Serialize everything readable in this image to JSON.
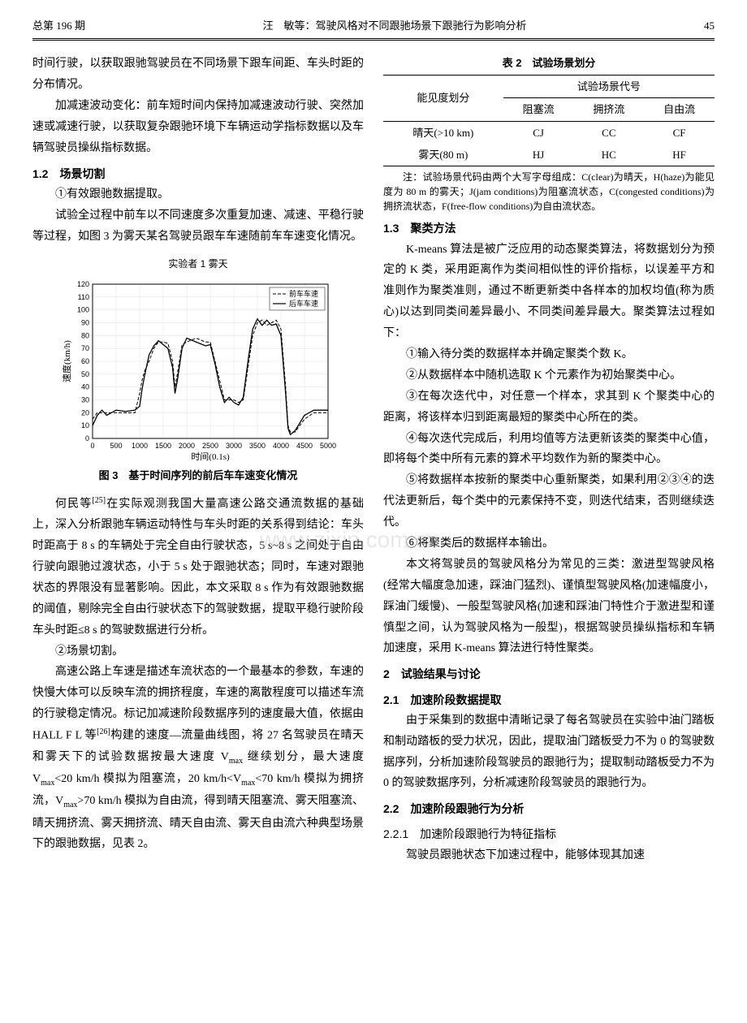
{
  "header": {
    "issue": "总第 196 期",
    "running": "汪　敏等：驾驶风格对不同跟驰场景下跟驰行为影响分析",
    "page": "45"
  },
  "left_col": {
    "p1": "时间行驶，以获取跟驰驾驶员在不同场景下跟车间距、车头时距的分布情况。",
    "p2": "加减速波动变化：前车短时间内保持加减速波动行驶、突然加速或减速行驶，以获取复杂跟驰环境下车辆运动学指标数据以及车辆驾驶员操纵指标数据。",
    "sec12_num": "1.2",
    "sec12_title": "场景切割",
    "p3": "①有效跟驰数据提取。",
    "p4": "试验全过程中前车以不同速度多次重复加速、减速、平稳行驶等过程，如图 3 为雾天某名驾驶员跟车车速随前车车速变化情况。",
    "chart": {
      "title": "实验者 1 雾天",
      "legend_front": "前车车速",
      "legend_rear": "后车车速",
      "ylabel": "速度(km/h)",
      "xlabel": "时间(0.1s)",
      "caption": "图 3　基于时间序列的前后车车速变化情况",
      "xlim": [
        0,
        5000
      ],
      "ylim": [
        0,
        120
      ],
      "xtick_step": 500,
      "ytick_step": 10,
      "grid_color": "#e0e0e0",
      "axis_color": "#000000",
      "front_line_dash": "4,2",
      "front_color": "#000000",
      "rear_color": "#000000",
      "series_front": [
        [
          0,
          15
        ],
        [
          100,
          20
        ],
        [
          200,
          20
        ],
        [
          300,
          20
        ],
        [
          500,
          20
        ],
        [
          700,
          20
        ],
        [
          900,
          20
        ],
        [
          1000,
          35
        ],
        [
          1050,
          45
        ],
        [
          1100,
          52
        ],
        [
          1200,
          60
        ],
        [
          1300,
          70
        ],
        [
          1400,
          75
        ],
        [
          1500,
          75
        ],
        [
          1600,
          74
        ],
        [
          1700,
          60
        ],
        [
          1750,
          40
        ],
        [
          1800,
          50
        ],
        [
          1900,
          73
        ],
        [
          2000,
          75
        ],
        [
          2200,
          78
        ],
        [
          2400,
          75
        ],
        [
          2500,
          75
        ],
        [
          2600,
          60
        ],
        [
          2700,
          45
        ],
        [
          2800,
          30
        ],
        [
          2900,
          30
        ],
        [
          3000,
          30
        ],
        [
          3100,
          28
        ],
        [
          3200,
          30
        ],
        [
          3300,
          55
        ],
        [
          3400,
          80
        ],
        [
          3500,
          90
        ],
        [
          3600,
          92
        ],
        [
          3700,
          88
        ],
        [
          3800,
          90
        ],
        [
          3900,
          92
        ],
        [
          4000,
          85
        ],
        [
          4100,
          40
        ],
        [
          4150,
          10
        ],
        [
          4200,
          5
        ],
        [
          4300,
          5
        ],
        [
          4500,
          15
        ],
        [
          4700,
          20
        ],
        [
          5000,
          20
        ]
      ],
      "series_rear": [
        [
          0,
          10
        ],
        [
          100,
          18
        ],
        [
          200,
          22
        ],
        [
          300,
          18
        ],
        [
          500,
          22
        ],
        [
          700,
          21
        ],
        [
          900,
          22
        ],
        [
          1000,
          25
        ],
        [
          1050,
          38
        ],
        [
          1100,
          48
        ],
        [
          1200,
          65
        ],
        [
          1300,
          72
        ],
        [
          1400,
          76
        ],
        [
          1500,
          73
        ],
        [
          1600,
          70
        ],
        [
          1700,
          55
        ],
        [
          1750,
          35
        ],
        [
          1800,
          45
        ],
        [
          1900,
          70
        ],
        [
          2000,
          78
        ],
        [
          2200,
          75
        ],
        [
          2400,
          72
        ],
        [
          2500,
          73
        ],
        [
          2600,
          58
        ],
        [
          2700,
          40
        ],
        [
          2800,
          28
        ],
        [
          2900,
          32
        ],
        [
          3000,
          28
        ],
        [
          3100,
          26
        ],
        [
          3200,
          32
        ],
        [
          3300,
          60
        ],
        [
          3400,
          85
        ],
        [
          3500,
          93
        ],
        [
          3600,
          88
        ],
        [
          3700,
          92
        ],
        [
          3800,
          88
        ],
        [
          3900,
          89
        ],
        [
          4000,
          80
        ],
        [
          4100,
          35
        ],
        [
          4150,
          8
        ],
        [
          4200,
          3
        ],
        [
          4300,
          6
        ],
        [
          4500,
          18
        ],
        [
          4700,
          22
        ],
        [
          5000,
          22
        ]
      ]
    },
    "p5_pre": "何民等",
    "p5_cite": "[25]",
    "p5_post": "在实际观测我国大量高速公路交通流数据的基础上，深入分析跟驰车辆运动特性与车头时距的关系得到结论：车头时距高于 8 s 的车辆处于完全自由行驶状态，5 s~8 s 之间处于自由行驶向跟驰过渡状态，小于 5 s 处于跟驰状态；同时，车速对跟驰状态的界限没有显著影响。因此，本文采取 8 s 作为有效跟驰数据的阈值，剔除完全自由行驶状态下的驾驶数据，提取平稳行驶阶段车头时距≤8 s 的驾驶数据进行分析。",
    "p6": "②场景切割。",
    "p7_a": "高速公路上车速是描述车流状态的一个最基本的参数，车速的快慢大体可以反映车流的拥挤程度，车速的离散程度可以描述车流的行驶稳定情况。标记加减速阶段数据序列的速度最大值，依据由 HALL F L 等",
    "p7_cite": "[26]",
    "p7_b": "构建的速度—流量曲线图，将 27 名驾驶员在晴天和雾天下的试验数据按最大速度 V",
    "p7_c": " 继续划分，最大速度 V",
    "p7_d": "<20 km/h 模拟为阻塞流，20 km/h<V",
    "p7_e": "<70 km/h 模拟为拥挤流，V",
    "p7_f": ">70 km/h 模拟为自由流，得到晴天阻塞流、雾天阻塞流、晴天拥挤流、雾天拥挤流、晴天自由流、雾天自由流六种典型场景下的跟驰数据，见表 2。"
  },
  "right_col": {
    "table": {
      "caption": "表 2　试验场景划分",
      "head_r1c1": "能见度划分",
      "head_r1c2": "试验场景代号",
      "head_r2c1": "阻塞流",
      "head_r2c2": "拥挤流",
      "head_r2c3": "自由流",
      "rows": [
        [
          "晴天(>10 km)",
          "CJ",
          "CC",
          "CF"
        ],
        [
          "雾天(80 m)",
          "HJ",
          "HC",
          "HF"
        ]
      ],
      "note": "注：试验场景代码由两个大写字母组成：C(clear)为晴天，H(haze)为能见度为 80 m 的雾天；J(jam conditions)为阻塞流状态，C(congested conditions)为拥挤流状态，F(free-flow conditions)为自由流状态。"
    },
    "sec13_num": "1.3",
    "sec13_title": "聚类方法",
    "p1": "K-means 算法是被广泛应用的动态聚类算法，将数据划分为预定的 K 类，采用距离作为类间相似性的评价指标，以误差平方和准则作为聚类准则，通过不断更新类中各样本的加权均值(称为质心)以达到同类间差异最小、不同类间差异最大。聚类算法过程如下：",
    "p2": "①输入待分类的数据样本并确定聚类个数 K。",
    "p3": "②从数据样本中随机选取 K 个元素作为初始聚类中心。",
    "p4": "③在每次迭代中，对任意一个样本，求其到 K 个聚类中心的距离，将该样本归到距离最短的聚类中心所在的类。",
    "p5": "④每次迭代完成后，利用均值等方法更新该类的聚类中心值，即将每个类中所有元素的算术平均数作为新的聚类中心。",
    "p6": "⑤将数据样本按新的聚类中心重新聚类，如果利用②③④的迭代法更新后，每个类中的元素保持不变，则迭代结束，否则继续迭代。",
    "p7": "⑥将聚类后的数据样本输出。",
    "p8": "本文将驾驶员的驾驶风格分为常见的三类：激进型驾驶风格(经常大幅度急加速，踩油门猛烈)、谨慎型驾驶风格(加速幅度小，踩油门缓慢)、一般型驾驶风格(加速和踩油门特性介于激进型和谨慎型之间，认为驾驶风格为一般型)，根据驾驶员操纵指标和车辆加速度，采用 K-means 算法进行特性聚类。",
    "sec2_num": "2",
    "sec2_title": "试验结果与讨论",
    "sec21_num": "2.1",
    "sec21_title": "加速阶段数据提取",
    "p9": "由于采集到的数据中清晰记录了每名驾驶员在实验中油门踏板和制动踏板的受力状况，因此，提取油门踏板受力不为 0 的驾驶数据序列，分析加速阶段驾驶员的跟驰行为；提取制动踏板受力不为 0 的驾驶数据序列，分析减速阶段驾驶员的跟驰行为。",
    "sec22_num": "2.2",
    "sec22_title": "加速阶段跟驰行为分析",
    "sec221_num": "2.2.1",
    "sec221_title": "加速阶段跟驰行为特征指标",
    "p10": "驾驶员跟驰状态下加速过程中，能够体现其加速"
  },
  "watermark": "www.zixin.com.cn",
  "max_sub": "max"
}
